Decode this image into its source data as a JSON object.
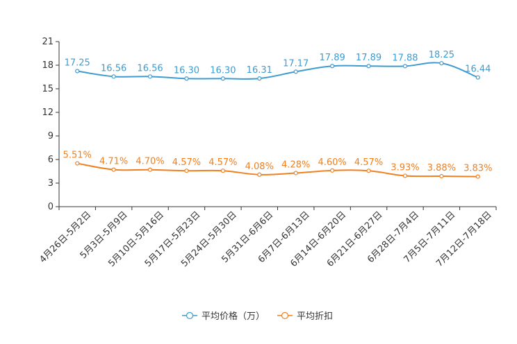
{
  "chart_data": {
    "type": "line",
    "title": "",
    "xlabel": "",
    "ylabel": "",
    "ylim": [
      0,
      21
    ],
    "yticks": [
      0,
      3,
      6,
      9,
      12,
      15,
      18,
      21
    ],
    "grid": false,
    "legend_position": "bottom-center",
    "categories": [
      "4月26日-5月2日",
      "5月3日-5月9日",
      "5月10日-5月16日",
      "5月17日-5月23日",
      "5月24日-5月30日",
      "5月31日-6月6日",
      "6月7日-6月13日",
      "6月14日-6月20日",
      "6月21日-6月27日",
      "6月28日-7月4日",
      "7月5日-7月11日",
      "7月12日-7月18日"
    ],
    "series": [
      {
        "name": "平均价格（万）",
        "color": "#3d9bd0",
        "values": [
          17.25,
          16.56,
          16.56,
          16.3,
          16.3,
          16.31,
          17.17,
          17.89,
          17.89,
          17.88,
          18.25,
          16.44
        ],
        "labels": [
          "17.25",
          "16.56",
          "16.56",
          "16.30",
          "16.30",
          "16.31",
          "17.17",
          "17.89",
          "17.89",
          "17.88",
          "18.25",
          "16.44"
        ]
      },
      {
        "name": "平均折扣",
        "color": "#f07f1f",
        "values": [
          5.51,
          4.71,
          4.7,
          4.57,
          4.57,
          4.08,
          4.28,
          4.6,
          4.57,
          3.93,
          3.88,
          3.83
        ],
        "labels": [
          "5.51%",
          "4.71%",
          "4.70%",
          "4.57%",
          "4.57%",
          "4.08%",
          "4.28%",
          "4.60%",
          "4.57%",
          "3.93%",
          "3.88%",
          "3.83%"
        ]
      }
    ]
  }
}
